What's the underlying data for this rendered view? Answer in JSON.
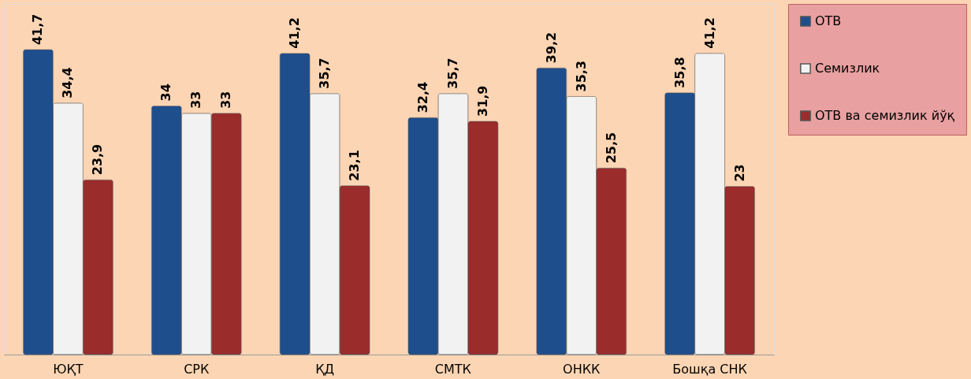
{
  "chart_data": {
    "type": "bar",
    "categories": [
      "ЮҚТ",
      "СРК",
      "ҚД",
      "СМТК",
      "ОНКК",
      "Бошқа СНК"
    ],
    "series": [
      {
        "name": "ОТВ",
        "color": "#1f4e8c",
        "values": [
          41.7,
          34,
          41.2,
          32.4,
          39.2,
          35.8
        ],
        "value_labels": [
          "41,7",
          "34",
          "41,2",
          "32,4",
          "39,2",
          "35,8"
        ]
      },
      {
        "name": "Семизлик",
        "color": "#f2f2f2",
        "values": [
          34.4,
          33,
          35.7,
          35.7,
          35.3,
          41.2
        ],
        "value_labels": [
          "34,4",
          "33",
          "35,7",
          "35,7",
          "35,3",
          "41,2"
        ]
      },
      {
        "name": "ОТВ ва семизлик йўқ",
        "color": "#9b2c2c",
        "values": [
          23.9,
          33,
          23.1,
          31.9,
          25.5,
          23
        ],
        "value_labels": [
          "23,9",
          "33",
          "23,1",
          "31,9",
          "25,5",
          "23"
        ]
      }
    ],
    "legend": "right",
    "grid": false
  }
}
